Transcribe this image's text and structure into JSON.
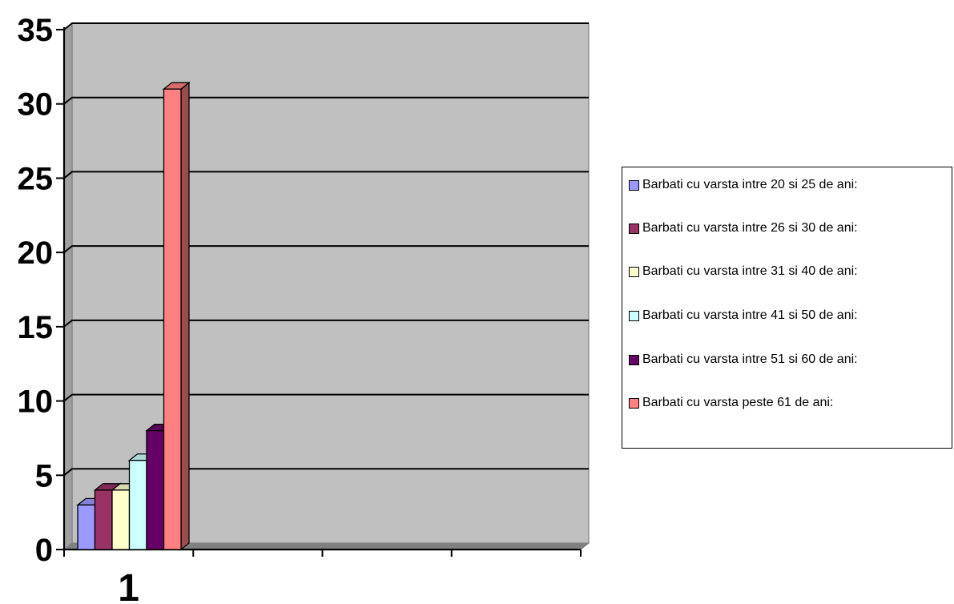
{
  "chart_data": {
    "type": "bar",
    "categories": [
      "1"
    ],
    "series": [
      {
        "name": "Barbati cu varsta intre 20 si 25 de ani:",
        "values": [
          3
        ],
        "color": "#9999FF"
      },
      {
        "name": "Barbati cu varsta intre 26 si 30 de ani:",
        "values": [
          4
        ],
        "color": "#993366"
      },
      {
        "name": "Barbati cu varsta intre 31 si 40 de ani:",
        "values": [
          4
        ],
        "color": "#FFFFCC"
      },
      {
        "name": "Barbati cu varsta intre 41 si 50 de ani:",
        "values": [
          6
        ],
        "color": "#CCFFFF"
      },
      {
        "name": "Barbati cu varsta intre 51 si 60 de ani:",
        "values": [
          8
        ],
        "color": "#660066"
      },
      {
        "name": "Barbati cu varsta peste 61 de ani:",
        "values": [
          31
        ],
        "color": "#FF8080"
      }
    ],
    "yticks": [
      "0",
      "5",
      "10",
      "15",
      "20",
      "25",
      "30",
      "35"
    ],
    "ylim": [
      0,
      35
    ],
    "xlabel": "",
    "ylabel": "",
    "title": "",
    "grid": true,
    "legend_position": "right",
    "plot_background": "#C0C0C0",
    "three_d": true
  }
}
